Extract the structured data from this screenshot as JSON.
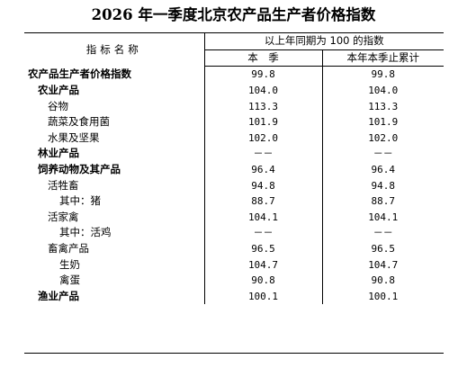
{
  "title": "2026 年一季度北京农产品生产者价格指数",
  "header": {
    "indicator_name": "指标名称",
    "group_label": "以上年同期为 100 的指数",
    "col_quarter": "本　季",
    "col_ytd": "本年本季止累计"
  },
  "rows": [
    {
      "name": "农产品生产者价格指数",
      "quarter": "99.8",
      "ytd": "99.8"
    },
    {
      "name": "农业产品",
      "quarter": "104.0",
      "ytd": "104.0"
    },
    {
      "name": "谷物",
      "quarter": "113.3",
      "ytd": "113.3"
    },
    {
      "name": "蔬菜及食用菌",
      "quarter": "101.9",
      "ytd": "101.9"
    },
    {
      "name": "水果及坚果",
      "quarter": "102.0",
      "ytd": "102.0"
    },
    {
      "name": "林业产品",
      "quarter": "－－",
      "ytd": "－－"
    },
    {
      "name": "饲养动物及其产品",
      "quarter": "96.4",
      "ytd": "96.4"
    },
    {
      "name": "活牲畜",
      "quarter": "94.8",
      "ytd": "94.8"
    },
    {
      "name": "其中：猪",
      "quarter": "88.7",
      "ytd": "88.7"
    },
    {
      "name": "活家禽",
      "quarter": "104.1",
      "ytd": "104.1"
    },
    {
      "name": "其中：活鸡",
      "quarter": "－－",
      "ytd": "－－"
    },
    {
      "name": "畜禽产品",
      "quarter": "96.5",
      "ytd": "96.5"
    },
    {
      "name": "生奶",
      "quarter": "104.7",
      "ytd": "104.7"
    },
    {
      "name": "禽蛋",
      "quarter": "90.8",
      "ytd": "90.8"
    },
    {
      "name": "渔业产品",
      "quarter": "100.1",
      "ytd": "100.1"
    }
  ]
}
